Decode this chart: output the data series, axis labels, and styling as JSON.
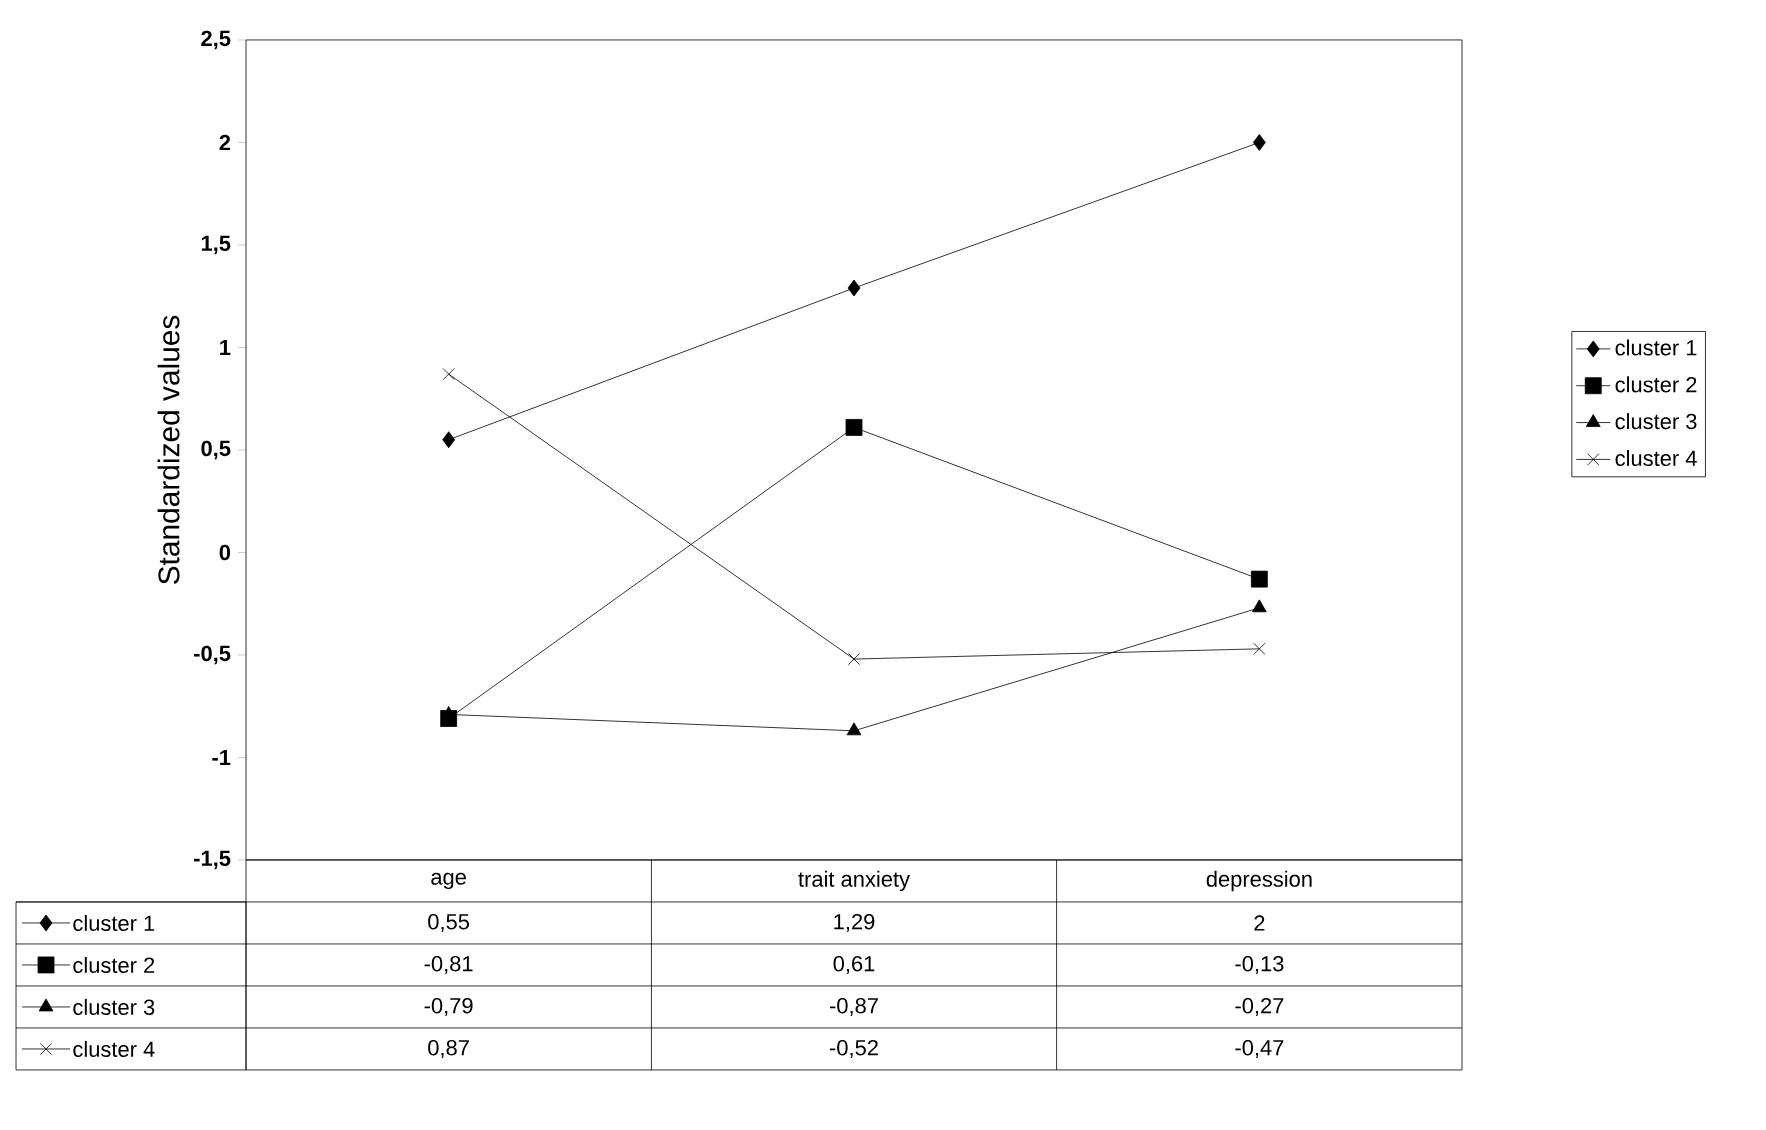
{
  "chart_data": {
    "type": "line",
    "ylabel": "Standardized values",
    "categories": [
      "age",
      "trait anxiety",
      "depression"
    ],
    "series": [
      {
        "name": "cluster 1",
        "color": "#000000",
        "marker": "diamond",
        "values": [
          0.55,
          1.29,
          2
        ],
        "value_labels": [
          "0,55",
          "1,29",
          "2"
        ]
      },
      {
        "name": "cluster 2",
        "color": "#000000",
        "marker": "square",
        "values": [
          -0.81,
          0.61,
          -0.13
        ],
        "value_labels": [
          "-0,81",
          "0,61",
          "-0,13"
        ]
      },
      {
        "name": "cluster 3",
        "color": "#000000",
        "marker": "triangle",
        "values": [
          -0.79,
          -0.87,
          -0.27
        ],
        "value_labels": [
          "-0,79",
          "-0,87",
          "-0,27"
        ]
      },
      {
        "name": "cluster 4",
        "color": "#000000",
        "marker": "cross",
        "values": [
          0.87,
          -0.52,
          -0.47
        ],
        "value_labels": [
          "0,87",
          "-0,52",
          "-0,47"
        ]
      }
    ],
    "ylim": [
      -1.5,
      2.5
    ],
    "yticks": [
      {
        "value": -1.5,
        "label": "-1,5"
      },
      {
        "value": -1,
        "label": "-1"
      },
      {
        "value": -0.5,
        "label": "-0,5"
      },
      {
        "value": 0,
        "label": "0"
      },
      {
        "value": 0.5,
        "label": "0,5"
      },
      {
        "value": 1,
        "label": "1"
      },
      {
        "value": 1.5,
        "label": "1,5"
      },
      {
        "value": 2,
        "label": "2"
      },
      {
        "value": 2.5,
        "label": "2,5"
      }
    ],
    "grid": false,
    "legend": "right",
    "line_style": "solid"
  }
}
